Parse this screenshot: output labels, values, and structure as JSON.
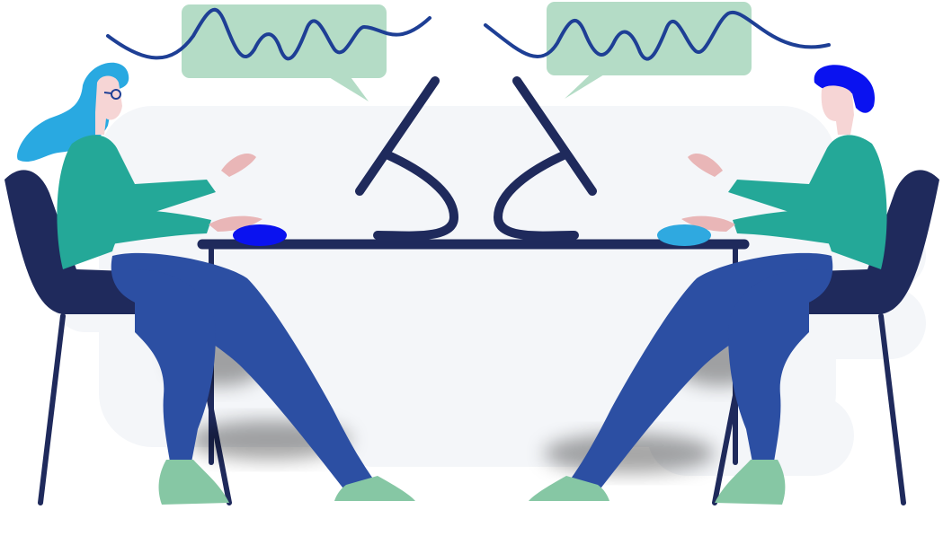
{
  "illustration": {
    "subject": "",
    "palette": {
      "navy": "#1f2a5c",
      "denim": "#2c4fa3",
      "teal": "#24a898",
      "mint": "#86c7a4",
      "bubble": "#b4dcc6",
      "wave": "#1e3f95",
      "left_hair": "#29a9e1",
      "right_hair": "#0a12f0",
      "skin": "#f6d5d5",
      "hand": "#e9b6b7",
      "left_mouse": "#0a12f0",
      "right_mouse": "#2fa9e0",
      "backdrop": "#f4f6f9"
    },
    "icons": [
      "speech-bubble-icon",
      "sound-wave-icon",
      "monitor-icon",
      "mouse-icon"
    ]
  }
}
